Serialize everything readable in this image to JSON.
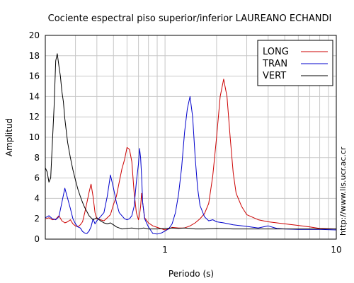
{
  "chart_data": {
    "type": "line",
    "title": "Cociente espectral piso superior/inferior LAUREANO ECHANDI",
    "xlabel": "Periodo (s)",
    "ylabel": "Amplitud",
    "xscale": "log",
    "xlim": [
      0.2,
      10
    ],
    "ylim": [
      0,
      20
    ],
    "x_tick_labels": [
      {
        "value": 1,
        "label": "1"
      },
      {
        "value": 10,
        "label": "10"
      }
    ],
    "y_ticks": [
      0,
      2,
      4,
      6,
      8,
      10,
      12,
      14,
      16,
      18,
      20
    ],
    "grid": true,
    "legend_position": "top-right",
    "series": [
      {
        "name": "LONG",
        "color": "#cc0000",
        "points": [
          [
            0.2,
            2.0
          ],
          [
            0.21,
            2.1
          ],
          [
            0.22,
            1.9
          ],
          [
            0.23,
            1.95
          ],
          [
            0.24,
            2.3
          ],
          [
            0.25,
            1.8
          ],
          [
            0.26,
            1.6
          ],
          [
            0.27,
            1.7
          ],
          [
            0.28,
            1.9
          ],
          [
            0.29,
            1.5
          ],
          [
            0.3,
            1.3
          ],
          [
            0.31,
            1.2
          ],
          [
            0.32,
            1.4
          ],
          [
            0.33,
            1.7
          ],
          [
            0.34,
            2.6
          ],
          [
            0.35,
            3.6
          ],
          [
            0.36,
            4.6
          ],
          [
            0.37,
            5.4
          ],
          [
            0.38,
            4.2
          ],
          [
            0.39,
            2.6
          ],
          [
            0.4,
            2.0
          ],
          [
            0.42,
            1.9
          ],
          [
            0.44,
            1.8
          ],
          [
            0.46,
            2.1
          ],
          [
            0.48,
            2.4
          ],
          [
            0.5,
            3.4
          ],
          [
            0.52,
            4.2
          ],
          [
            0.54,
            5.6
          ],
          [
            0.56,
            6.9
          ],
          [
            0.58,
            7.8
          ],
          [
            0.6,
            9.0
          ],
          [
            0.62,
            8.8
          ],
          [
            0.64,
            7.6
          ],
          [
            0.66,
            4.6
          ],
          [
            0.68,
            2.6
          ],
          [
            0.7,
            1.9
          ],
          [
            0.71,
            2.4
          ],
          [
            0.72,
            3.2
          ],
          [
            0.73,
            4.5
          ],
          [
            0.74,
            3.6
          ],
          [
            0.76,
            2.1
          ],
          [
            0.8,
            1.6
          ],
          [
            0.85,
            1.3
          ],
          [
            0.9,
            1.15
          ],
          [
            1.0,
            0.9
          ],
          [
            1.05,
            1.0
          ],
          [
            1.1,
            1.15
          ],
          [
            1.2,
            1.1
          ],
          [
            1.3,
            1.1
          ],
          [
            1.4,
            1.3
          ],
          [
            1.5,
            1.6
          ],
          [
            1.6,
            2.0
          ],
          [
            1.7,
            2.5
          ],
          [
            1.8,
            3.5
          ],
          [
            1.9,
            6.2
          ],
          [
            2.0,
            10.0
          ],
          [
            2.1,
            14.0
          ],
          [
            2.2,
            15.7
          ],
          [
            2.3,
            14.0
          ],
          [
            2.4,
            10.0
          ],
          [
            2.5,
            6.5
          ],
          [
            2.6,
            4.5
          ],
          [
            2.8,
            3.2
          ],
          [
            3.0,
            2.4
          ],
          [
            3.5,
            1.9
          ],
          [
            4.0,
            1.7
          ],
          [
            5.0,
            1.5
          ],
          [
            6.0,
            1.35
          ],
          [
            7.0,
            1.2
          ],
          [
            8.0,
            1.05
          ],
          [
            10.0,
            1.0
          ]
        ]
      },
      {
        "name": "TRAN",
        "color": "#0000cc",
        "points": [
          [
            0.2,
            2.1
          ],
          [
            0.21,
            2.3
          ],
          [
            0.22,
            2.0
          ],
          [
            0.23,
            1.9
          ],
          [
            0.24,
            2.2
          ],
          [
            0.25,
            3.6
          ],
          [
            0.26,
            5.0
          ],
          [
            0.27,
            4.0
          ],
          [
            0.28,
            3.0
          ],
          [
            0.29,
            2.0
          ],
          [
            0.3,
            1.5
          ],
          [
            0.31,
            1.2
          ],
          [
            0.32,
            1.1
          ],
          [
            0.33,
            0.75
          ],
          [
            0.34,
            0.6
          ],
          [
            0.35,
            0.55
          ],
          [
            0.36,
            0.8
          ],
          [
            0.37,
            1.2
          ],
          [
            0.38,
            2.0
          ],
          [
            0.39,
            1.5
          ],
          [
            0.4,
            1.8
          ],
          [
            0.42,
            2.2
          ],
          [
            0.44,
            2.6
          ],
          [
            0.46,
            4.2
          ],
          [
            0.48,
            6.3
          ],
          [
            0.5,
            5.0
          ],
          [
            0.52,
            3.6
          ],
          [
            0.54,
            2.6
          ],
          [
            0.56,
            2.3
          ],
          [
            0.58,
            2.0
          ],
          [
            0.6,
            1.9
          ],
          [
            0.62,
            2.0
          ],
          [
            0.64,
            2.3
          ],
          [
            0.66,
            3.2
          ],
          [
            0.68,
            5.6
          ],
          [
            0.7,
            7.4
          ],
          [
            0.71,
            8.9
          ],
          [
            0.72,
            8.0
          ],
          [
            0.73,
            6.2
          ],
          [
            0.74,
            3.6
          ],
          [
            0.76,
            2.0
          ],
          [
            0.8,
            1.2
          ],
          [
            0.85,
            0.55
          ],
          [
            0.9,
            0.5
          ],
          [
            0.95,
            0.6
          ],
          [
            1.0,
            0.8
          ],
          [
            1.05,
            1.0
          ],
          [
            1.1,
            1.5
          ],
          [
            1.15,
            2.6
          ],
          [
            1.2,
            4.4
          ],
          [
            1.25,
            7.0
          ],
          [
            1.3,
            10.5
          ],
          [
            1.35,
            12.8
          ],
          [
            1.4,
            14.0
          ],
          [
            1.45,
            12.0
          ],
          [
            1.5,
            8.0
          ],
          [
            1.55,
            5.0
          ],
          [
            1.6,
            3.3
          ],
          [
            1.7,
            2.2
          ],
          [
            1.8,
            1.8
          ],
          [
            1.9,
            1.9
          ],
          [
            2.0,
            1.7
          ],
          [
            2.2,
            1.6
          ],
          [
            2.5,
            1.4
          ],
          [
            3.0,
            1.25
          ],
          [
            3.5,
            1.1
          ],
          [
            4.0,
            1.3
          ],
          [
            4.5,
            1.05
          ],
          [
            5.0,
            1.0
          ],
          [
            6.0,
            0.95
          ],
          [
            8.0,
            0.95
          ],
          [
            10.0,
            0.9
          ]
        ]
      },
      {
        "name": "VERT",
        "color": "#000000",
        "points": [
          [
            0.2,
            7.0
          ],
          [
            0.205,
            6.6
          ],
          [
            0.21,
            5.6
          ],
          [
            0.215,
            6.0
          ],
          [
            0.22,
            9.5
          ],
          [
            0.225,
            13.0
          ],
          [
            0.23,
            17.5
          ],
          [
            0.235,
            18.2
          ],
          [
            0.24,
            17.0
          ],
          [
            0.245,
            16.0
          ],
          [
            0.25,
            14.5
          ],
          [
            0.255,
            13.5
          ],
          [
            0.26,
            11.8
          ],
          [
            0.27,
            9.5
          ],
          [
            0.28,
            8.0
          ],
          [
            0.29,
            6.8
          ],
          [
            0.3,
            5.8
          ],
          [
            0.31,
            4.9
          ],
          [
            0.32,
            4.2
          ],
          [
            0.33,
            3.6
          ],
          [
            0.34,
            3.1
          ],
          [
            0.35,
            2.7
          ],
          [
            0.36,
            2.3
          ],
          [
            0.37,
            2.1
          ],
          [
            0.38,
            1.9
          ],
          [
            0.39,
            2.0
          ],
          [
            0.4,
            2.1
          ],
          [
            0.42,
            1.8
          ],
          [
            0.44,
            1.6
          ],
          [
            0.46,
            1.5
          ],
          [
            0.48,
            1.6
          ],
          [
            0.5,
            1.4
          ],
          [
            0.52,
            1.2
          ],
          [
            0.54,
            1.1
          ],
          [
            0.56,
            1.0
          ],
          [
            0.6,
            1.05
          ],
          [
            0.64,
            1.1
          ],
          [
            0.7,
            1.0
          ],
          [
            0.75,
            1.1
          ],
          [
            0.8,
            1.0
          ],
          [
            0.9,
            1.0
          ],
          [
            1.0,
            1.05
          ],
          [
            1.1,
            1.1
          ],
          [
            1.2,
            1.05
          ],
          [
            1.3,
            1.1
          ],
          [
            1.4,
            1.05
          ],
          [
            1.5,
            1.0
          ],
          [
            1.7,
            1.0
          ],
          [
            2.0,
            1.05
          ],
          [
            2.5,
            1.0
          ],
          [
            3.0,
            1.0
          ],
          [
            4.0,
            1.0
          ],
          [
            5.0,
            1.0
          ],
          [
            6.0,
            1.0
          ],
          [
            8.0,
            1.0
          ],
          [
            10.0,
            1.0
          ]
        ]
      }
    ]
  },
  "side_text": "http://www.lis.ucr.ac.cr"
}
